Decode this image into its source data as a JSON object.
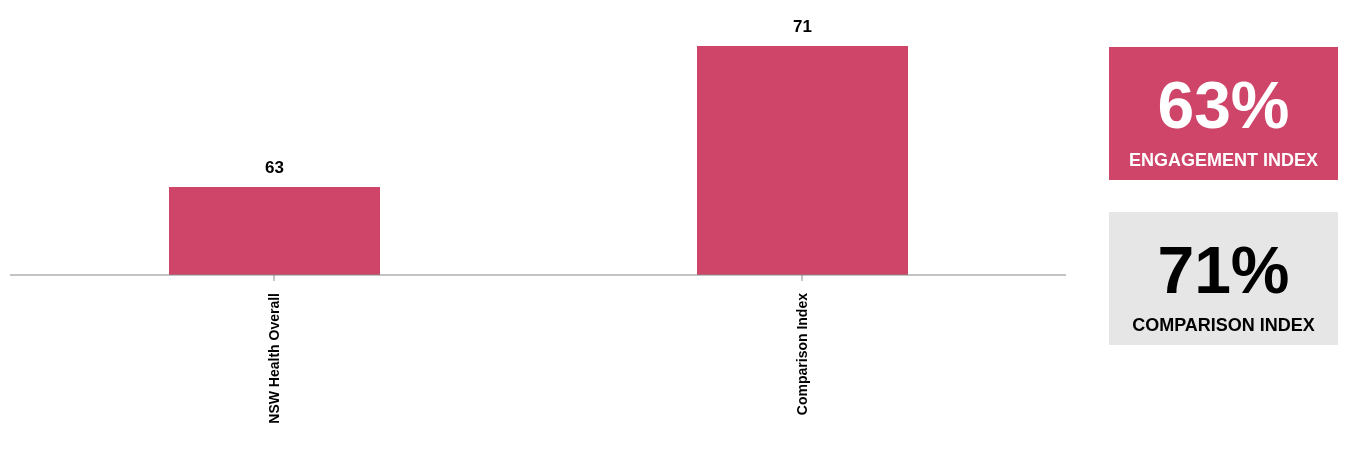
{
  "chart_data": {
    "type": "bar",
    "categories": [
      "NSW Health Overall",
      "Comparison Index"
    ],
    "values": [
      63,
      71
    ],
    "color": "#cf4469",
    "ylim": [
      58,
      71
    ],
    "data_labels": true,
    "annotations": [
      "63%",
      "ENGAGEMENT INDEX",
      "71%",
      "COMPARISON INDEX"
    ]
  }
}
